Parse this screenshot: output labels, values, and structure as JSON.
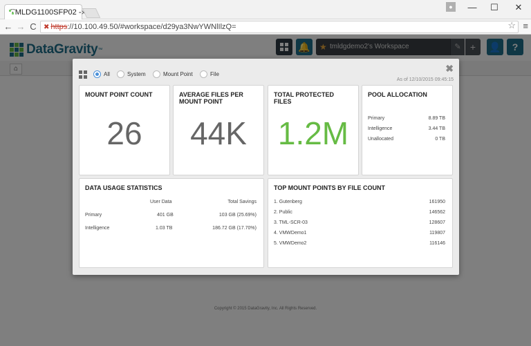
{
  "browser": {
    "tab_title": "TMLDG1100SFP02 -",
    "tab_close": "×",
    "url_scheme": "https",
    "url_rest": "://10.100.49.50/#workspace/d29ya3NwYWNlIlzQ=",
    "star": "☆",
    "menu": "≡",
    "nav_back": "←",
    "nav_forward": "→",
    "nav_reload": "C",
    "win_min": "—",
    "win_max": "☐",
    "win_close": "✕"
  },
  "header": {
    "logo_text": "DataGravity",
    "logo_tm": "™",
    "workspace_label": "tmldgdemo2's Workspace",
    "workspace_edit": "✎",
    "workspace_add": "+",
    "bell_icon": "🔔",
    "user_icon": "👤",
    "help_icon": "?",
    "home_icon": "⌂"
  },
  "footer": {
    "copyright": "Copyright © 2015 DataGravity, Inc. All Rights Reserved."
  },
  "modal": {
    "close": "✖",
    "as_of": "As of 12/10/2015 09:45:15",
    "filters": [
      {
        "label": "All",
        "checked": true
      },
      {
        "label": "System",
        "checked": false
      },
      {
        "label": "Mount Point",
        "checked": false
      },
      {
        "label": "File",
        "checked": false
      }
    ],
    "mount_point_count": {
      "title": "MOUNT POINT COUNT",
      "value": "26"
    },
    "avg_files": {
      "title": "AVERAGE FILES PER MOUNT POINT",
      "value": "44K"
    },
    "total_protected": {
      "title": "TOTAL PROTECTED FILES",
      "value": "1.2M",
      "color": "#66bb44"
    },
    "pool_allocation": {
      "title": "POOL ALLOCATION",
      "rows": [
        {
          "label": "Primary",
          "value": "8.89 TB"
        },
        {
          "label": "Intelligence",
          "value": "3.44 TB"
        },
        {
          "label": "Unallocated",
          "value": "0 TB"
        }
      ]
    },
    "data_usage": {
      "title": "DATA USAGE STATISTICS",
      "columns": [
        "User Data",
        "Total Savings"
      ],
      "rows": [
        {
          "label": "Primary",
          "user_data": "401 GB",
          "savings": "103 GB (25.69%)"
        },
        {
          "label": "Intelligence",
          "user_data": "1.03 TB",
          "savings": "186.72 GB (17.70%)"
        }
      ]
    },
    "top_mount_points": {
      "title": "TOP MOUNT POINTS BY FILE COUNT",
      "rows": [
        {
          "label": "1. Gutenberg",
          "value": "161950"
        },
        {
          "label": "2. Public",
          "value": "146562"
        },
        {
          "label": "3. TML-SCR-03",
          "value": "128607"
        },
        {
          "label": "4. VMWDemo1",
          "value": "119807"
        },
        {
          "label": "5. VMWDemo2",
          "value": "116146"
        }
      ]
    }
  }
}
